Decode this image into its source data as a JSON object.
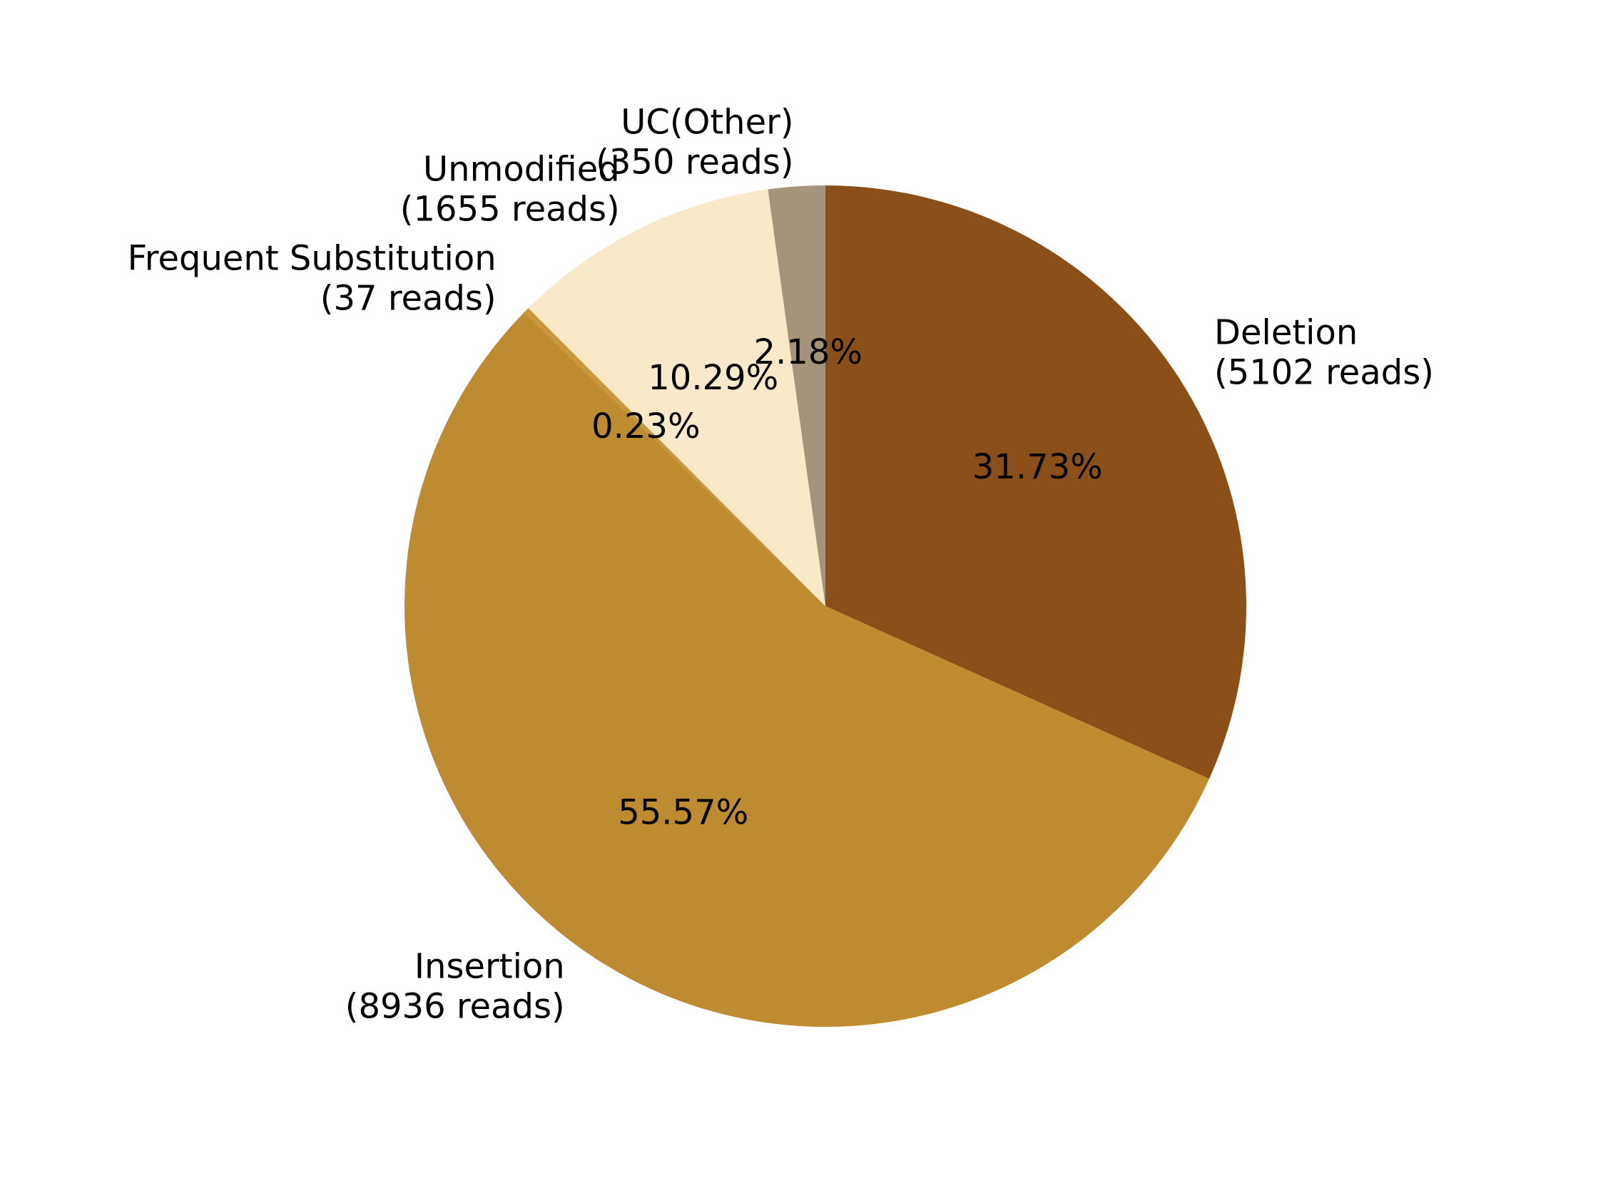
{
  "chart_data": {
    "type": "pie",
    "title": "",
    "start_angle_deg": 90,
    "direction": "clockwise",
    "slices": [
      {
        "name": "Deletion",
        "reads_label": "(5102 reads)",
        "reads": 5102,
        "percent": 31.73,
        "percent_label": "31.73%",
        "color": "#8b4f1a"
      },
      {
        "name": "Insertion",
        "reads_label": "(8936 reads)",
        "reads": 8936,
        "percent": 55.57,
        "percent_label": "55.57%",
        "color": "#bf8b30"
      },
      {
        "name": "Frequent Substitution",
        "reads_label": "(37 reads)",
        "reads": 37,
        "percent": 0.23,
        "percent_label": "0.23%",
        "color": "#c8963c"
      },
      {
        "name": "Unmodified",
        "reads_label": "(1655 reads)",
        "reads": 1655,
        "percent": 10.29,
        "percent_label": "10.29%",
        "color": "#f8e9c8"
      },
      {
        "name": "UC(Other)",
        "reads_label": "(350 reads)",
        "reads": 350,
        "percent": 2.18,
        "percent_label": "2.18%",
        "color": "#a6937c"
      }
    ]
  }
}
